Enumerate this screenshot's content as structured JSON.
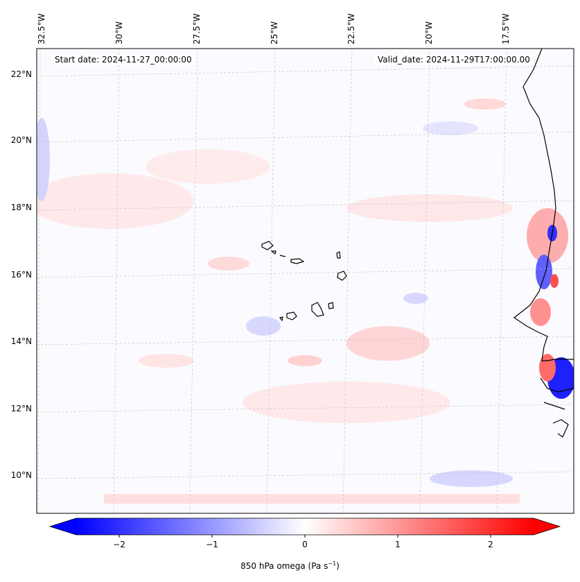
{
  "map": {
    "start_label": "Start date: 2024-11-27_00:00:00",
    "valid_label": "Valid_date: 2024-11-29T17:00:00.00",
    "lon_labels": [
      "32.5°W",
      "30°W",
      "27.5°W",
      "25°W",
      "22.5°W",
      "20°W",
      "17.5°W"
    ],
    "lat_labels": [
      "22°N",
      "20°N",
      "18°N",
      "16°N",
      "14°N",
      "12°N",
      "10°N"
    ],
    "field": "850 hPa omega",
    "colors": {
      "negative": "#0000ff",
      "neutral": "#ffffff",
      "positive": "#ff0000",
      "coast": "#000000",
      "grid": "#bbbbbb"
    }
  },
  "colorbar": {
    "ticks": [
      "−2",
      "−1",
      "0",
      "1",
      "2"
    ],
    "label_main": "850 hPa omega (Pa s",
    "label_sup": "−1",
    "label_end": ")",
    "range": [
      -2.6,
      2.6
    ],
    "extend": "both"
  }
}
